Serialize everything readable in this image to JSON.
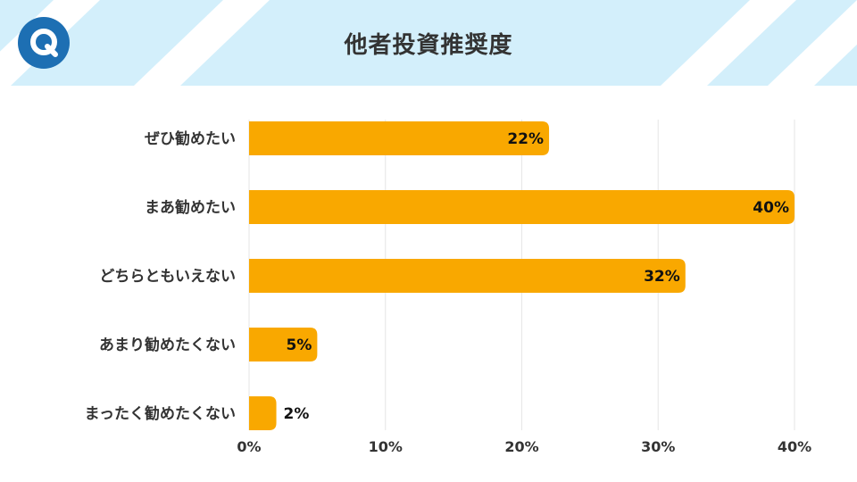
{
  "header": {
    "title": "他者投資推奨度",
    "logo_letter": "Q",
    "background_color": "#d3effb",
    "stripe_color": "#ffffff",
    "logo_color": "#1d6fb3"
  },
  "chart_data": {
    "type": "bar",
    "orientation": "horizontal",
    "title": "他者投資推奨度",
    "categories": [
      "ぜひ勧めたい",
      "まあ勧めたい",
      "どちらともいえない",
      "あまり勧めたくない",
      "まったく勧めたくない"
    ],
    "values": [
      22,
      40,
      32,
      5,
      2
    ],
    "value_labels": [
      "22%",
      "40%",
      "32%",
      "5%",
      "2%"
    ],
    "x_ticks": [
      "0%",
      "10%",
      "20%",
      "30%",
      "40%"
    ],
    "x_tick_values": [
      0,
      10,
      20,
      30,
      40
    ],
    "xlim": [
      0,
      40
    ],
    "grid": true,
    "bar_color": "#f9a800",
    "xlabel": "",
    "ylabel": ""
  }
}
